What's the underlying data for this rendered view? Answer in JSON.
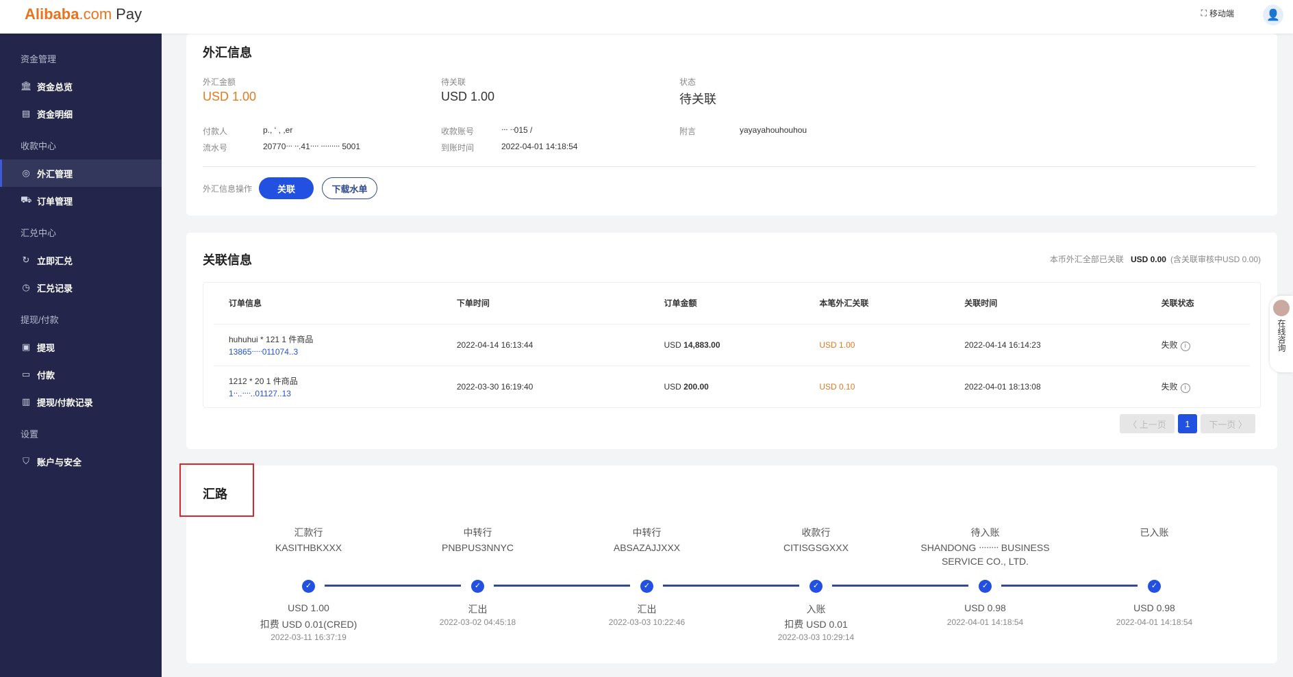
{
  "header": {
    "logo_brand": "Alibaba",
    "logo_com": ".com",
    "logo_pay": "Pay",
    "mobile_label": "移动端"
  },
  "sidebar": {
    "sections": [
      {
        "label": "资金管理",
        "items": [
          {
            "label": "资金总览",
            "icon": "bank-icon"
          },
          {
            "label": "资金明细",
            "icon": "document-icon"
          }
        ]
      },
      {
        "label": "收款中心",
        "items": [
          {
            "label": "外汇管理",
            "icon": "globe-icon",
            "active": true
          },
          {
            "label": "订单管理",
            "icon": "cart-icon"
          }
        ]
      },
      {
        "label": "汇兑中心",
        "items": [
          {
            "label": "立即汇兑",
            "icon": "exchange-icon"
          },
          {
            "label": "汇兑记录",
            "icon": "clock-icon"
          }
        ]
      },
      {
        "label": "提现/付款",
        "items": [
          {
            "label": "提现",
            "icon": "wallet-icon"
          },
          {
            "label": "付款",
            "icon": "card-icon"
          },
          {
            "label": "提现/付款记录",
            "icon": "record-icon"
          }
        ]
      },
      {
        "label": "设置",
        "items": [
          {
            "label": "账户与安全",
            "icon": "shield-icon"
          }
        ]
      }
    ]
  },
  "fx_info": {
    "title": "外汇信息",
    "amount_label": "外汇金额",
    "amount": "USD 1.00",
    "pending_label": "待关联",
    "pending": "USD 1.00",
    "status_label": "状态",
    "status": "待关联",
    "payer_label": "付款人",
    "payer": "p.,   ‘  , ,er",
    "serial_label": "流水号",
    "serial": "20770ᐧᐧᐧ  ᐧᐧ.41ᐧᐧᐧᐧ  ᐧᐧᐧᐧᐧᐧᐧᐧᐧ 5001",
    "account_label": "收款账号",
    "account": "ᐧᐧᐧ  ᐧᐧ015  /",
    "arrival_label": "到账时间",
    "arrival": "2022-04-01 14:18:54",
    "note_label": "附言",
    "note": "yayayahouhouhou",
    "ops_label": "外汇信息操作",
    "link_btn": "关联",
    "download_btn": "下载水单"
  },
  "link_info": {
    "title": "关联信息",
    "summary_label": "本币外汇全部已关联",
    "summary_amount": "USD 0.00",
    "summary_note": "(含关联审核中USD 0.00)",
    "columns": [
      "订单信息",
      "下单时间",
      "订单金额",
      "本笔外汇关联",
      "关联时间",
      "关联状态"
    ],
    "rows": [
      {
        "order": "huhuhui * 121 1 件商品",
        "order_no": "13865ᐧᐧᐧᐧᐧ011074..3",
        "time": "2022-04-14 16:13:44",
        "amount_cur": "USD",
        "amount": "14,883.00",
        "linked": "USD 1.00",
        "link_time": "2022-04-14 16:14:23",
        "status": "失败"
      },
      {
        "order": "1212 * 20 1 件商品",
        "order_no": "1ᐧᐧ..ᐧᐧᐧᐧ..01127..13",
        "time": "2022-03-30 16:19:40",
        "amount_cur": "USD",
        "amount": "200.00",
        "linked": "USD 0.10",
        "link_time": "2022-04-01 18:13:08",
        "status": "失败"
      }
    ],
    "pager": {
      "prev": "〈 上一页",
      "current": "1",
      "next": "下一页 〉"
    }
  },
  "route": {
    "title": "汇路",
    "steps": [
      {
        "name": "汇款行",
        "bank": "KASITHBKXXX",
        "line1": "USD 1.00",
        "line2": "扣费 USD 0.01(CRED)",
        "time": "2022-03-11 16:37:19"
      },
      {
        "name": "中转行",
        "bank": "PNBPUS3NNYC",
        "line1": "汇出",
        "time": "2022-03-02 04:45:18"
      },
      {
        "name": "中转行",
        "bank": "ABSAZAJJXXX",
        "line1": "汇出",
        "time": "2022-03-03 10:22:46"
      },
      {
        "name": "收款行",
        "bank": "CITISGSGXXX",
        "line1": "入账",
        "line2": "扣费 USD 0.01",
        "time": "2022-03-03 10:29:14"
      },
      {
        "name": "待入账",
        "bank": "SHANDONG ᐧᐧᐧᐧᐧᐧᐧᐧ BUSINESS",
        "bank2": "SERVICE CO., LTD.",
        "line1": "USD 0.98",
        "time": "2022-04-01 14:18:54"
      },
      {
        "name": "已入账",
        "line1": "USD 0.98",
        "time": "2022-04-01 14:18:54"
      }
    ]
  },
  "chat": {
    "label": "在线咨询"
  },
  "colors": {
    "accent": "#2250e0",
    "orange": "#e07a1f",
    "sidebar": "#23264a",
    "highlight": "#d9262c"
  }
}
